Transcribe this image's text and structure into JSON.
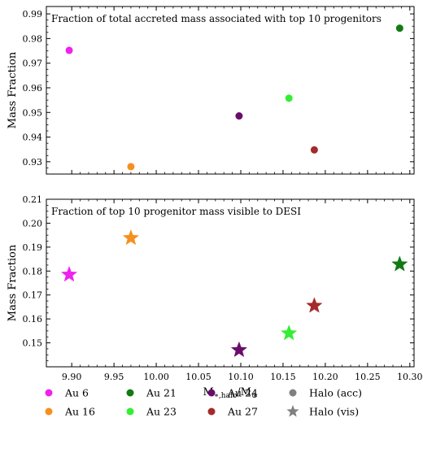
{
  "legend": {
    "entries": [
      {
        "label": "Au 6",
        "color": "#ee22ee",
        "marker": "circle"
      },
      {
        "label": "Au 16",
        "color": "#f5901e",
        "marker": "circle"
      },
      {
        "label": "Au 21",
        "color": "#137a13",
        "marker": "circle"
      },
      {
        "label": "Au 23",
        "color": "#33ee33",
        "marker": "circle"
      },
      {
        "label": "Au 24",
        "color": "#6a0d6a",
        "marker": "circle"
      },
      {
        "label": "Au 27",
        "color": "#a52a2a",
        "marker": "circle"
      },
      {
        "label": "Halo (acc)",
        "color": "#808080",
        "marker": "circle"
      },
      {
        "label": "Halo (vis)",
        "color": "#808080",
        "marker": "star"
      }
    ]
  },
  "chart_data": [
    {
      "type": "scatter",
      "title": "Fraction of total accreted mass associated with top 10 progenitors",
      "xlabel": "",
      "ylabel": "Mass Fraction",
      "xlim": [
        9.87,
        10.305
      ],
      "ylim": [
        0.925,
        0.993
      ],
      "yticks": [
        "0.93",
        "0.94",
        "0.95",
        "0.96",
        "0.97",
        "0.98",
        "0.99"
      ],
      "xticks": [
        "9.90",
        "9.95",
        "10.00",
        "10.05",
        "10.10",
        "10.15",
        "10.20",
        "10.25",
        "10.30"
      ],
      "show_x_tick_labels": false,
      "marker": "circle",
      "points": [
        {
          "name": "Au 6",
          "x": 9.897,
          "y": 0.9752,
          "color": "#ee22ee"
        },
        {
          "name": "Au 16",
          "x": 9.97,
          "y": 0.928,
          "color": "#f5901e"
        },
        {
          "name": "Au 21",
          "x": 10.288,
          "y": 0.9842,
          "color": "#137a13"
        },
        {
          "name": "Au 23",
          "x": 10.157,
          "y": 0.9558,
          "color": "#33ee33"
        },
        {
          "name": "Au 24",
          "x": 10.098,
          "y": 0.9486,
          "color": "#6a0d6a"
        },
        {
          "name": "Au 27",
          "x": 10.187,
          "y": 0.9348,
          "color": "#a52a2a"
        }
      ]
    },
    {
      "type": "scatter",
      "title": "Fraction of top 10 progenitor mass visible to DESI",
      "xlabel": "M",
      "xlabel_sub": "∗,halo",
      "xlabel_tail": "/M",
      "xlabel_tail_sub": "⊙",
      "ylabel": "Mass Fraction",
      "xlim": [
        9.87,
        10.305
      ],
      "ylim": [
        0.14,
        0.21
      ],
      "yticks": [
        "0.15",
        "0.16",
        "0.17",
        "0.18",
        "0.19",
        "0.20",
        "0.21"
      ],
      "xticks": [
        "9.90",
        "9.95",
        "10.00",
        "10.05",
        "10.10",
        "10.15",
        "10.20",
        "10.25",
        "10.30"
      ],
      "show_x_tick_labels": true,
      "marker": "star",
      "points": [
        {
          "name": "Au 6",
          "x": 9.897,
          "y": 0.1785,
          "color": "#ee22ee"
        },
        {
          "name": "Au 16",
          "x": 9.97,
          "y": 0.1938,
          "color": "#f5901e"
        },
        {
          "name": "Au 21",
          "x": 10.288,
          "y": 0.1828,
          "color": "#137a13"
        },
        {
          "name": "Au 23",
          "x": 10.157,
          "y": 0.154,
          "color": "#33ee33"
        },
        {
          "name": "Au 24",
          "x": 10.098,
          "y": 0.147,
          "color": "#6a0d6a"
        },
        {
          "name": "Au 27",
          "x": 10.187,
          "y": 0.1655,
          "color": "#a52a2a"
        }
      ]
    }
  ]
}
